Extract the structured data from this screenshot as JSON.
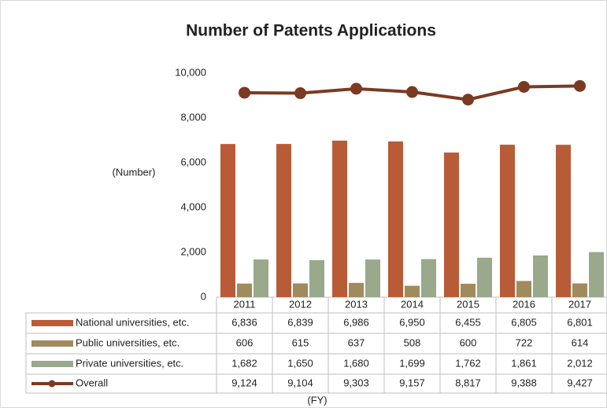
{
  "chart_data": {
    "type": "bar",
    "title": "Number of Patents Applications",
    "y_label": "(Number)",
    "x_label": "(FY)",
    "categories": [
      "2011",
      "2012",
      "2013",
      "2014",
      "2015",
      "2016",
      "2017"
    ],
    "ylim": [
      0,
      10000
    ],
    "yticks": [
      0,
      {
        "value": 2000,
        "label": "2,000"
      },
      {
        "value": 4000,
        "label": "4,000"
      },
      {
        "value": 6000,
        "label": "6,000"
      },
      {
        "value": 8000,
        "label": "8,000"
      },
      {
        "value": 10000,
        "label": "10,000"
      }
    ],
    "series": [
      {
        "name": "National universities, etc.",
        "type": "bar",
        "color": "#b85c38",
        "values": [
          6836,
          6839,
          6986,
          6950,
          6455,
          6805,
          6801
        ],
        "value_labels": [
          "6,836",
          "6,839",
          "6,986",
          "6,950",
          "6,455",
          "6,805",
          "6,801"
        ]
      },
      {
        "name": "Public universities, etc.",
        "type": "bar",
        "color": "#a08b5e",
        "values": [
          606,
          615,
          637,
          508,
          600,
          722,
          614
        ],
        "value_labels": [
          "606",
          "615",
          "637",
          "508",
          "600",
          "722",
          "614"
        ]
      },
      {
        "name": "Private universities, etc.",
        "type": "bar",
        "color": "#9aa88c",
        "values": [
          1682,
          1650,
          1680,
          1699,
          1762,
          1861,
          2012
        ],
        "value_labels": [
          "1,682",
          "1,650",
          "1,680",
          "1,699",
          "1,762",
          "1,861",
          "2,012"
        ]
      },
      {
        "name": "Overall",
        "type": "line",
        "color": "#7b3a22",
        "values": [
          9124,
          9104,
          9303,
          9157,
          8817,
          9388,
          9427
        ],
        "value_labels": [
          "9,124",
          "9,104",
          "9,303",
          "9,157",
          "8,817",
          "9,388",
          "9,427"
        ]
      }
    ]
  }
}
